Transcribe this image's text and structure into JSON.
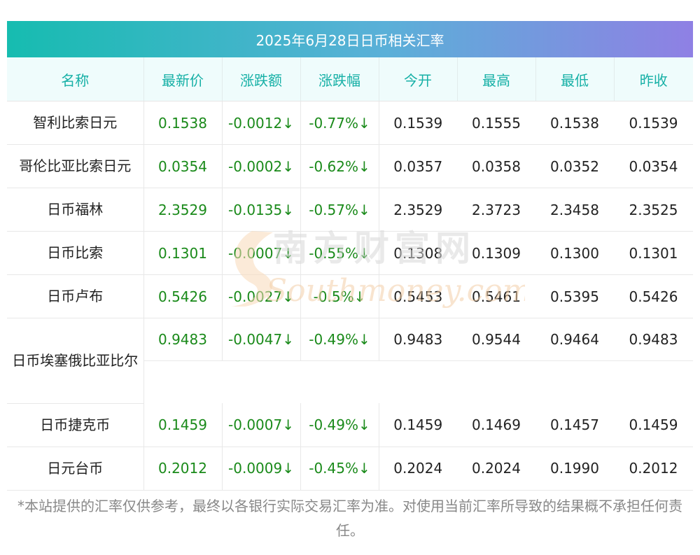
{
  "title": "2025年6月28日日币相关汇率",
  "headers": [
    "名称",
    "最新价",
    "涨跌额",
    "涨跌幅",
    "今开",
    "最高",
    "最低",
    "昨收"
  ],
  "rows": [
    {
      "name": "智利比索日元",
      "latest": "0.1538",
      "change": "-0.0012↓",
      "pct": "-0.77%↓",
      "open": "0.1539",
      "high": "0.1555",
      "low": "0.1538",
      "prev": "0.1539"
    },
    {
      "name": "哥伦比亚比索日元",
      "latest": "0.0354",
      "change": "-0.0002↓",
      "pct": "-0.62%↓",
      "open": "0.0357",
      "high": "0.0358",
      "low": "0.0352",
      "prev": "0.0354"
    },
    {
      "name": "日币福林",
      "latest": "2.3529",
      "change": "-0.0135↓",
      "pct": "-0.57%↓",
      "open": "2.3529",
      "high": "2.3723",
      "low": "2.3458",
      "prev": "2.3525"
    },
    {
      "name": "日币比索",
      "latest": "0.1301",
      "change": "-0.0007↓",
      "pct": "-0.55%↓",
      "open": "0.1308",
      "high": "0.1309",
      "low": "0.1300",
      "prev": "0.1301"
    },
    {
      "name": "日币卢布",
      "latest": "0.5426",
      "change": "-0.0027↓",
      "pct": "-0.5%↓",
      "open": "0.5453",
      "high": "0.5461",
      "low": "0.5395",
      "prev": "0.5426"
    },
    {
      "name": "日币埃塞俄比亚比尔",
      "latest": "0.9483",
      "change": "-0.0047↓",
      "pct": "-0.49%↓",
      "open": "0.9483",
      "high": "0.9544",
      "low": "0.9464",
      "prev": "0.9483"
    },
    {
      "name": "日币捷克币",
      "latest": "0.1459",
      "change": "-0.0007↓",
      "pct": "-0.49%↓",
      "open": "0.1459",
      "high": "0.1469",
      "low": "0.1457",
      "prev": "0.1459"
    },
    {
      "name": "日元台币",
      "latest": "0.2012",
      "change": "-0.0009↓",
      "pct": "-0.45%↓",
      "open": "0.2024",
      "high": "0.2024",
      "low": "0.1990",
      "prev": "0.2012"
    }
  ],
  "watermark": {
    "cn": "南方财富网",
    "en": "Southmoney.com"
  },
  "disclaimer": "*本站提供的汇率仅供参考，最终以各银行实际交易汇率为准。对使用当前汇率所导致的结果概不承担任何责任。",
  "colors": {
    "accent": "#16b0a6",
    "up_down_green": "#1a8a1a",
    "header_bg": "#effcfc"
  }
}
